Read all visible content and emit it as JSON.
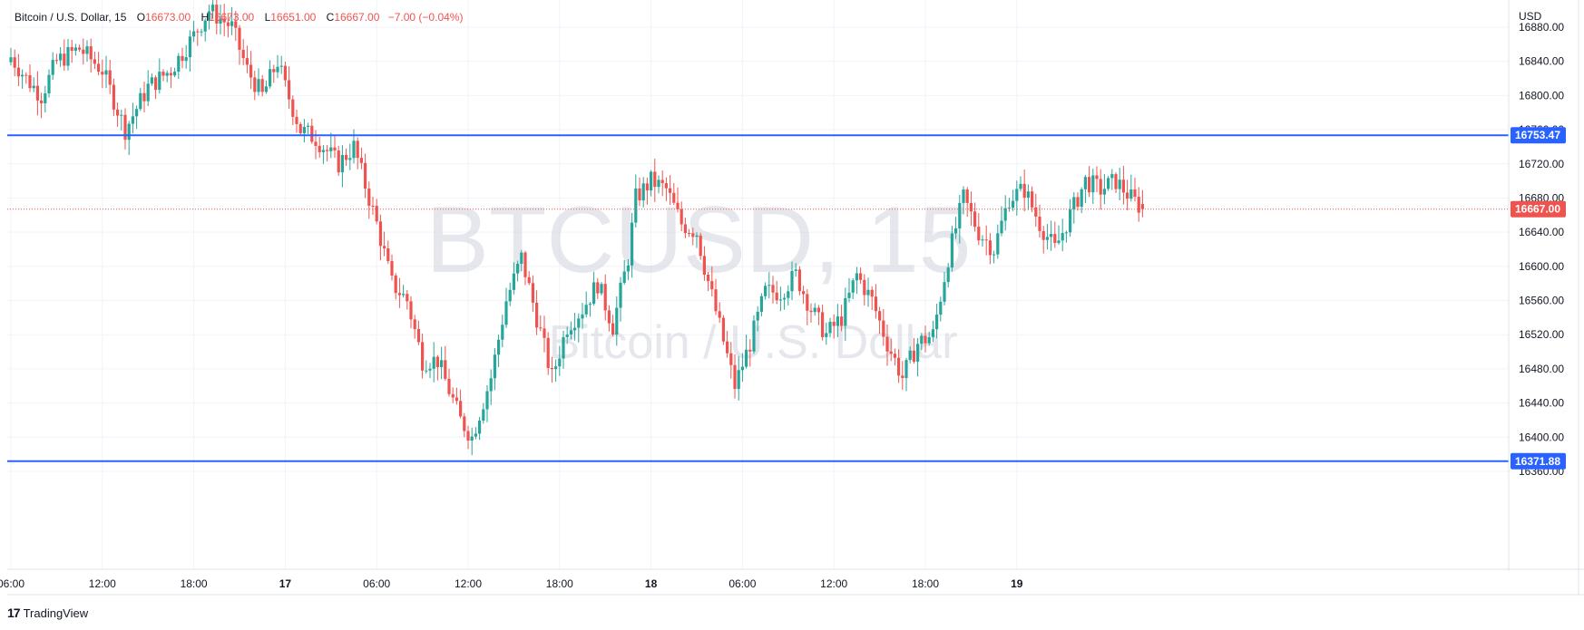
{
  "symbol_header": "Bitcoin / U.S. Dollar, 15",
  "ohlc": {
    "o_label": "O",
    "o_value": "16673.00",
    "h_label": "H",
    "h_value": "16673.00",
    "l_label": "L",
    "l_value": "16651.00",
    "c_label": "C",
    "c_value": "16667.00",
    "change": "−7.00 (−0.04%)"
  },
  "watermark": {
    "ticker": "BTCUSD, 15",
    "name": "Bitcoin / U.S. Dollar"
  },
  "currency": "USD",
  "branding": {
    "logo_glyph": "17",
    "name": "TradingView"
  },
  "colors": {
    "up": "#26a69a",
    "down": "#ef5350",
    "hline": "#2962ff",
    "last": "#ef5350",
    "grid": "#f0f3fa"
  },
  "chart_data": {
    "type": "candlestick",
    "timeframe": "15",
    "x_ticks": [
      "06:00",
      "12:00",
      "18:00",
      "17",
      "06:00",
      "12:00",
      "18:00",
      "18",
      "06:00",
      "12:00",
      "18:00",
      "19"
    ],
    "y_ticks": [
      "16880.00",
      "16840.00",
      "16800.00",
      "16760.00",
      "16720.00",
      "16680.00",
      "16640.00",
      "16600.00",
      "16560.00",
      "16520.00",
      "16480.00",
      "16440.00",
      "16400.00",
      "16360.00"
    ],
    "ylim": [
      16348,
      16895
    ],
    "horizontal_lines": [
      {
        "value": 16753.47,
        "label": "16753.47"
      },
      {
        "value": 16371.88,
        "label": "16371.88"
      }
    ],
    "last_price": {
      "value": 16667.0,
      "label": "16667.00"
    },
    "close_path": [
      [
        0,
        16845
      ],
      [
        4,
        16820
      ],
      [
        8,
        16800
      ],
      [
        12,
        16840
      ],
      [
        18,
        16855
      ],
      [
        24,
        16830
      ],
      [
        30,
        16760
      ],
      [
        36,
        16810
      ],
      [
        42,
        16830
      ],
      [
        48,
        16870
      ],
      [
        52,
        16900
      ],
      [
        58,
        16880
      ],
      [
        62,
        16830
      ],
      [
        66,
        16800
      ],
      [
        70,
        16840
      ],
      [
        72,
        16810
      ],
      [
        76,
        16760
      ],
      [
        80,
        16750
      ],
      [
        86,
        16720
      ],
      [
        90,
        16740
      ],
      [
        96,
        16650
      ],
      [
        100,
        16580
      ],
      [
        104,
        16560
      ],
      [
        108,
        16490
      ],
      [
        112,
        16490
      ],
      [
        118,
        16420
      ],
      [
        121,
        16400
      ],
      [
        126,
        16470
      ],
      [
        130,
        16560
      ],
      [
        134,
        16610
      ],
      [
        138,
        16540
      ],
      [
        142,
        16470
      ],
      [
        146,
        16530
      ],
      [
        150,
        16550
      ],
      [
        154,
        16580
      ],
      [
        158,
        16530
      ],
      [
        162,
        16610
      ],
      [
        164,
        16680
      ],
      [
        168,
        16700
      ],
      [
        172,
        16690
      ],
      [
        176,
        16650
      ],
      [
        180,
        16640
      ],
      [
        182,
        16600
      ],
      [
        186,
        16530
      ],
      [
        190,
        16460
      ],
      [
        194,
        16510
      ],
      [
        198,
        16570
      ],
      [
        202,
        16570
      ],
      [
        206,
        16590
      ],
      [
        210,
        16550
      ],
      [
        214,
        16520
      ],
      [
        218,
        16540
      ],
      [
        222,
        16590
      ],
      [
        226,
        16560
      ],
      [
        230,
        16510
      ],
      [
        234,
        16470
      ],
      [
        238,
        16510
      ],
      [
        242,
        16520
      ],
      [
        246,
        16610
      ],
      [
        250,
        16680
      ],
      [
        254,
        16640
      ],
      [
        258,
        16620
      ],
      [
        262,
        16680
      ],
      [
        266,
        16690
      ],
      [
        270,
        16650
      ],
      [
        274,
        16620
      ],
      [
        278,
        16660
      ],
      [
        282,
        16700
      ],
      [
        286,
        16690
      ],
      [
        290,
        16700
      ],
      [
        294,
        16680
      ],
      [
        297,
        16667
      ]
    ]
  }
}
